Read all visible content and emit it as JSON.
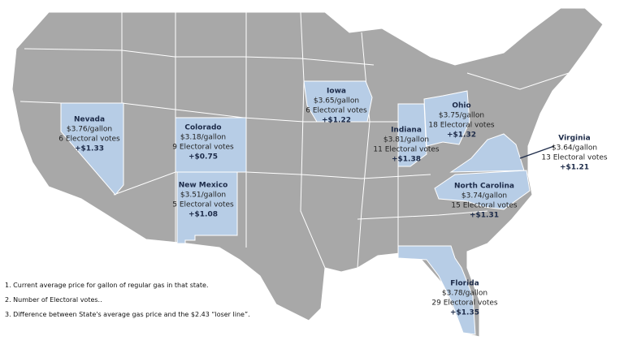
{
  "states": [
    {
      "name": "Nevada",
      "price": "$3.76/gallon",
      "votes": "6 Electoral votes",
      "diff": "+$1.33"
    },
    {
      "name": "Colorado",
      "price": "$3.18/gallon",
      "votes": "9 Electoral votes",
      "diff": "+$0.75"
    },
    {
      "name": "New Mexico",
      "price": "$3.51/gallon",
      "votes": "5 Electoral votes",
      "diff": "+$1.08"
    },
    {
      "name": "Iowa",
      "price": "$3.65/gallon",
      "votes": "6 Electoral votes",
      "diff": "+$1.22"
    },
    {
      "name": "Indiana",
      "price": "$3.81/gallon",
      "votes": "11 Electoral votes",
      "diff": "+$1.38"
    },
    {
      "name": "Ohio",
      "price": "$3.75/gallon",
      "votes": "18 Electoral votes",
      "diff": "+$1.32"
    },
    {
      "name": "Virginia",
      "price": "$3.64/gallon",
      "votes": "13 Electoral votes",
      "diff": "+$1.21"
    },
    {
      "name": "North Carolina",
      "price": "$3.74/gallon",
      "votes": "15 Electoral votes",
      "diff": "+$1.31"
    },
    {
      "name": "Florida",
      "price": "$3.78/gallon",
      "votes": "29 Electoral votes",
      "diff": "+$1.35"
    }
  ],
  "footnotes": [
    "1. Current average  price for gallon of regular gas in that state.",
    "2. Number  of Electoral votes..",
    "3. Difference between  State's average gas price and the $2.43 “loser line”."
  ]
}
